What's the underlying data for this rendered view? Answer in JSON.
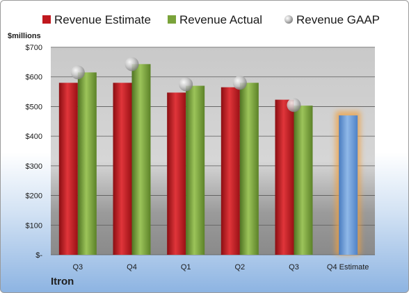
{
  "chart_data": {
    "type": "bar",
    "ylabel": "$millions",
    "company": "Itron",
    "ylim": [
      0,
      700
    ],
    "ytick_labels": [
      "$-",
      "$100",
      "$200",
      "$300",
      "$400",
      "$500",
      "$600",
      "$700"
    ],
    "categories": [
      "Q3",
      "Q4",
      "Q1",
      "Q2",
      "Q3",
      "Q4 Estimate"
    ],
    "legend_position": "top",
    "grid": true,
    "series": [
      {
        "name": "Revenue Estimate",
        "kind": "bar",
        "color": "#c0181e",
        "values": [
          580,
          580,
          547,
          565,
          523,
          null
        ]
      },
      {
        "name": "Revenue Actual",
        "kind": "bar",
        "color": "#7aa33a",
        "values": [
          615,
          643,
          570,
          580,
          503,
          null
        ]
      },
      {
        "name": "Revenue GAAP",
        "kind": "marker",
        "color": "#b8b8b8",
        "values": [
          615,
          643,
          575,
          580,
          505,
          null
        ]
      }
    ],
    "estimate_bar": {
      "category": "Q4 Estimate",
      "value": 470,
      "color": "#6f9fd8",
      "glow": "#f0a040"
    }
  }
}
